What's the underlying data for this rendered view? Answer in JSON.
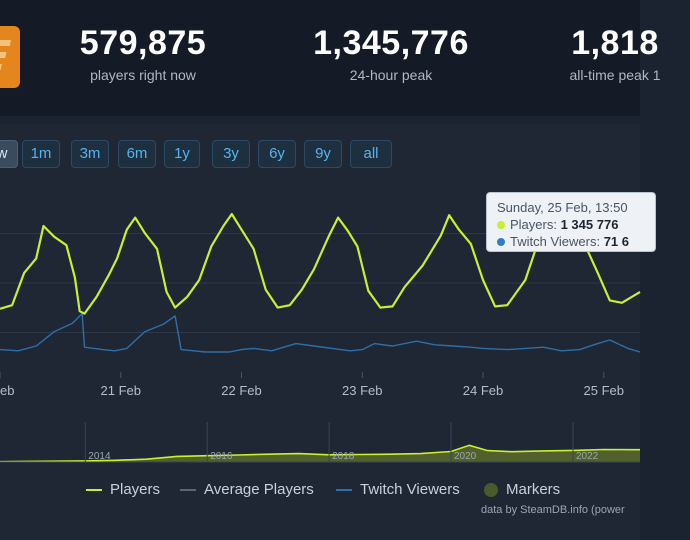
{
  "stats": [
    {
      "value": "579,875",
      "label": "players right now"
    },
    {
      "value": "1,345,776",
      "label": "24-hour peak"
    },
    {
      "value": "1,818",
      "label": "all-time peak 1"
    }
  ],
  "range_buttons": [
    "w",
    "1m",
    "3m",
    "6m",
    "1y",
    "3y",
    "6y",
    "9y",
    "all"
  ],
  "active_range": "w",
  "tooltip": {
    "date": "Sunday, 25 Feb, 13:50",
    "players_label": "Players:",
    "players_value": "1 345 776",
    "twitch_label": "Twitch Viewers:",
    "twitch_value": "71 6"
  },
  "colors": {
    "players": "#c6f030",
    "average": "#8a96a6",
    "twitch": "#2e6fa8",
    "markers": "#4a5a2a"
  },
  "legend": [
    "Players",
    "Average Players",
    "Twitch Viewers",
    "Markers"
  ],
  "credit": "data by SteamDB.info (power",
  "chart_data": [
    {
      "type": "line",
      "title": "",
      "x_ticks": [
        "eb",
        "21 Feb",
        "22 Feb",
        "23 Feb",
        "24 Feb",
        "25 Feb"
      ],
      "x_domain": [
        20.0,
        25.3
      ],
      "y_domain": [
        0,
        1500000
      ],
      "grid": true,
      "series": [
        {
          "name": "Players",
          "points": [
            [
              20.0,
              460000
            ],
            [
              20.1,
              490000
            ],
            [
              20.2,
              760000
            ],
            [
              20.3,
              880000
            ],
            [
              20.36,
              1150000
            ],
            [
              20.45,
              1060000
            ],
            [
              20.55,
              990000
            ],
            [
              20.62,
              720000
            ],
            [
              20.66,
              440000
            ],
            [
              20.7,
              420000
            ],
            [
              20.8,
              560000
            ],
            [
              20.9,
              740000
            ],
            [
              20.97,
              880000
            ],
            [
              21.05,
              1120000
            ],
            [
              21.12,
              1220000
            ],
            [
              21.2,
              1090000
            ],
            [
              21.3,
              960000
            ],
            [
              21.38,
              600000
            ],
            [
              21.45,
              470000
            ],
            [
              21.55,
              560000
            ],
            [
              21.65,
              700000
            ],
            [
              21.75,
              980000
            ],
            [
              21.85,
              1150000
            ],
            [
              21.92,
              1250000
            ],
            [
              22.0,
              1120000
            ],
            [
              22.1,
              960000
            ],
            [
              22.2,
              620000
            ],
            [
              22.3,
              470000
            ],
            [
              22.4,
              490000
            ],
            [
              22.5,
              620000
            ],
            [
              22.6,
              790000
            ],
            [
              22.72,
              1060000
            ],
            [
              22.8,
              1220000
            ],
            [
              22.88,
              1110000
            ],
            [
              22.96,
              980000
            ],
            [
              23.05,
              610000
            ],
            [
              23.15,
              470000
            ],
            [
              23.25,
              480000
            ],
            [
              23.35,
              640000
            ],
            [
              23.5,
              820000
            ],
            [
              23.65,
              1070000
            ],
            [
              23.72,
              1240000
            ],
            [
              23.8,
              1120000
            ],
            [
              23.9,
              1000000
            ],
            [
              24.0,
              700000
            ],
            [
              24.1,
              480000
            ],
            [
              24.2,
              490000
            ],
            [
              24.35,
              700000
            ],
            [
              24.45,
              1000000
            ],
            [
              24.55,
              1150000
            ],
            [
              24.65,
              1345776
            ],
            [
              24.75,
              1150000
            ],
            [
              24.85,
              980000
            ],
            [
              24.95,
              760000
            ],
            [
              25.05,
              530000
            ],
            [
              25.15,
              510000
            ],
            [
              25.3,
              600000
            ]
          ]
        },
        {
          "name": "Twitch Viewers",
          "points": [
            [
              20.0,
              120000
            ],
            [
              20.15,
              110000
            ],
            [
              20.3,
              150000
            ],
            [
              20.45,
              270000
            ],
            [
              20.6,
              340000
            ],
            [
              20.68,
              420000
            ],
            [
              20.7,
              140000
            ],
            [
              20.85,
              120000
            ],
            [
              20.95,
              110000
            ],
            [
              21.05,
              130000
            ],
            [
              21.2,
              270000
            ],
            [
              21.35,
              330000
            ],
            [
              21.45,
              400000
            ],
            [
              21.5,
              120000
            ],
            [
              21.7,
              100000
            ],
            [
              21.9,
              100000
            ],
            [
              22.0,
              120000
            ],
            [
              22.1,
              130000
            ],
            [
              22.25,
              110000
            ],
            [
              22.35,
              140000
            ],
            [
              22.45,
              170000
            ],
            [
              22.6,
              150000
            ],
            [
              22.75,
              130000
            ],
            [
              22.9,
              110000
            ],
            [
              23.0,
              120000
            ],
            [
              23.1,
              170000
            ],
            [
              23.25,
              150000
            ],
            [
              23.45,
              190000
            ],
            [
              23.6,
              160000
            ],
            [
              23.75,
              150000
            ],
            [
              23.9,
              140000
            ],
            [
              24.0,
              130000
            ],
            [
              24.2,
              120000
            ],
            [
              24.35,
              130000
            ],
            [
              24.5,
              140000
            ],
            [
              24.65,
              110000
            ],
            [
              24.8,
              120000
            ],
            [
              24.95,
              170000
            ],
            [
              25.05,
              200000
            ],
            [
              25.2,
              130000
            ],
            [
              25.3,
              100000
            ]
          ]
        }
      ]
    },
    {
      "type": "area",
      "title": "",
      "x_ticks": [
        "2014",
        "2016",
        "2018",
        "2020",
        "2022"
      ],
      "x_domain": [
        2012.6,
        2023.1
      ],
      "y_domain": [
        0,
        1500000
      ],
      "series": [
        {
          "name": "Players",
          "points": [
            [
              2012.6,
              20000
            ],
            [
              2013.0,
              40000
            ],
            [
              2013.5,
              60000
            ],
            [
              2014.0,
              80000
            ],
            [
              2014.5,
              120000
            ],
            [
              2015.0,
              200000
            ],
            [
              2015.5,
              400000
            ],
            [
              2016.0,
              450000
            ],
            [
              2016.5,
              500000
            ],
            [
              2017.0,
              560000
            ],
            [
              2017.5,
              600000
            ],
            [
              2018.0,
              520000
            ],
            [
              2018.5,
              540000
            ],
            [
              2019.0,
              560000
            ],
            [
              2019.5,
              600000
            ],
            [
              2020.0,
              750000
            ],
            [
              2020.3,
              1200000
            ],
            [
              2020.6,
              820000
            ],
            [
              2021.0,
              740000
            ],
            [
              2021.5,
              800000
            ],
            [
              2022.0,
              830000
            ],
            [
              2022.5,
              900000
            ],
            [
              2023.1,
              880000
            ]
          ]
        }
      ]
    }
  ]
}
